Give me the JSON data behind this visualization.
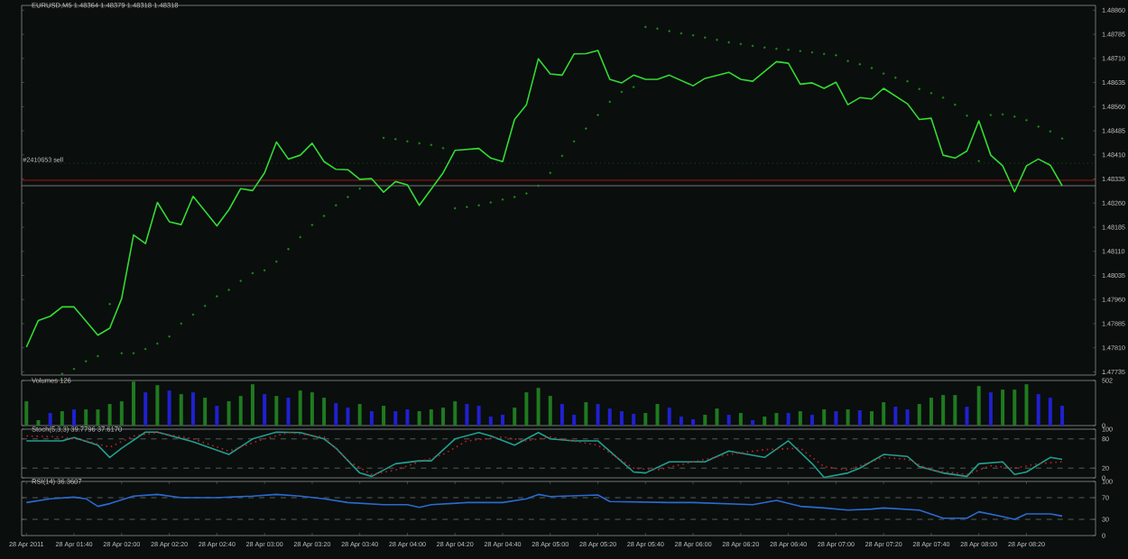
{
  "chart_data": [
    {
      "type": "line",
      "title": "EURUSD,M5  1.48364 1.48379 1.48318 1.48318",
      "xlim": [
        "2011-04-28T01:18",
        "2011-04-28T08:49"
      ],
      "ylim": [
        1.47725,
        1.48875
      ],
      "tick_labels": "y",
      "yticks": [
        1.47735,
        {
          "value": 1.4781,
          "label": "1.47810"
        },
        1.47885,
        {
          "value": 1.4796,
          "label": "1.47960"
        },
        1.48035,
        {
          "value": 1.4811,
          "label": "1.48110"
        },
        1.48185,
        {
          "value": 1.4826,
          "label": "1.48260"
        },
        1.48335,
        {
          "value": 1.4841,
          "label": "1.48410"
        },
        1.48485,
        {
          "value": 1.4856,
          "label": "1.48560"
        },
        1.48635,
        {
          "value": 1.4871,
          "label": "1.48710"
        },
        1.48785,
        {
          "value": 1.4886,
          "label": "1.48860"
        }
      ],
      "ref_lines": [
        {
          "axis": "y",
          "value": 1.48384,
          "label": "#2410653 sell",
          "color": "#1e7a1e",
          "line_style": "dotted"
        },
        {
          "axis": "y",
          "value": 1.48331,
          "color": "#c01818"
        },
        {
          "axis": "y",
          "value": 1.48314,
          "color": "#8a9090"
        }
      ],
      "series": [
        {
          "color": "#32dc32",
          "x": [
            "2011-04-28T01:20",
            "2011-04-28T01:25",
            "2011-04-28T01:30",
            "2011-04-28T01:35",
            "2011-04-28T01:40",
            "2011-04-28T01:50",
            "2011-04-28T01:55",
            "2011-04-28T02:00",
            "2011-04-28T02:05",
            "2011-04-28T02:10",
            "2011-04-28T02:15",
            "2011-04-28T02:20",
            "2011-04-28T02:25",
            "2011-04-28T02:30",
            "2011-04-28T02:40",
            "2011-04-28T02:45",
            "2011-04-28T02:50",
            "2011-04-28T02:55",
            "2011-04-28T03:00",
            "2011-04-28T03:05",
            "2011-04-28T03:10",
            "2011-04-28T03:15",
            "2011-04-28T03:20",
            "2011-04-28T03:25",
            "2011-04-28T03:30",
            "2011-04-28T03:35",
            "2011-04-28T03:40",
            "2011-04-28T03:45",
            "2011-04-28T03:50",
            "2011-04-28T03:55",
            "2011-04-28T04:00",
            "2011-04-28T04:05",
            "2011-04-28T04:15",
            "2011-04-28T04:20",
            "2011-04-28T04:30",
            "2011-04-28T04:35",
            "2011-04-28T04:40",
            "2011-04-28T04:45",
            "2011-04-28T04:50",
            "2011-04-28T04:55",
            "2011-04-28T05:00",
            "2011-04-28T05:05",
            "2011-04-28T05:10",
            "2011-04-28T05:15",
            "2011-04-28T05:20",
            "2011-04-28T05:25",
            "2011-04-28T05:30",
            "2011-04-28T05:35",
            "2011-04-28T05:40",
            "2011-04-28T05:45",
            "2011-04-28T05:50",
            "2011-04-28T06:00",
            "2011-04-28T06:05",
            "2011-04-28T06:15",
            "2011-04-28T06:20",
            "2011-04-28T06:25",
            "2011-04-28T06:35",
            "2011-04-28T06:40",
            "2011-04-28T06:45",
            "2011-04-28T06:50",
            "2011-04-28T06:55",
            "2011-04-28T07:00",
            "2011-04-28T07:05",
            "2011-04-28T07:10",
            "2011-04-28T07:15",
            "2011-04-28T07:20",
            "2011-04-28T07:30",
            "2011-04-28T07:35",
            "2011-04-28T07:40",
            "2011-04-28T07:45",
            "2011-04-28T07:50",
            "2011-04-28T07:55",
            "2011-04-28T08:00",
            "2011-04-28T08:05",
            "2011-04-28T08:10",
            "2011-04-28T08:15",
            "2011-04-28T08:20",
            "2011-04-28T08:25",
            "2011-04-28T08:30",
            "2011-04-28T08:35"
          ],
          "values": [
            1.47812,
            1.47895,
            1.47908,
            1.47937,
            1.47937,
            1.47849,
            1.47871,
            1.47963,
            1.48161,
            1.48134,
            1.48262,
            1.48202,
            1.48193,
            1.48281,
            1.48189,
            1.48239,
            1.48305,
            1.48299,
            1.48354,
            1.4845,
            1.48397,
            1.48409,
            1.48446,
            1.48389,
            1.48365,
            1.48364,
            1.48334,
            1.48336,
            1.48294,
            1.48327,
            1.48317,
            1.48253,
            1.48354,
            1.48424,
            1.4843,
            1.484,
            1.48389,
            1.4852,
            1.48566,
            1.48709,
            1.48662,
            1.48658,
            1.48724,
            1.48725,
            1.48735,
            1.48645,
            1.48634,
            1.48658,
            1.48645,
            1.48645,
            1.48658,
            1.48625,
            1.48648,
            1.48667,
            1.48645,
            1.48639,
            1.487,
            1.48695,
            1.4863,
            1.48634,
            1.48617,
            1.48636,
            1.48566,
            1.48588,
            1.48584,
            1.48617,
            1.48569,
            1.4852,
            1.48524,
            1.48409,
            1.484,
            1.48422,
            1.48516,
            1.48409,
            1.48376,
            1.48295,
            1.48376,
            1.48397,
            1.48378,
            1.48314
          ]
        },
        {
          "type": "scatter",
          "color": "#1c8c1c",
          "x": [
            "2011-04-28T01:35",
            "2011-04-28T01:40",
            "2011-04-28T01:45",
            "2011-04-28T01:50",
            "2011-04-28T01:55",
            "2011-04-28T02:00",
            "2011-04-28T02:05",
            "2011-04-28T02:10",
            "2011-04-28T02:15",
            "2011-04-28T02:20",
            "2011-04-28T02:25",
            "2011-04-28T02:30",
            "2011-04-28T02:35",
            "2011-04-28T02:40",
            "2011-04-28T02:45",
            "2011-04-28T02:50",
            "2011-04-28T02:55",
            "2011-04-28T03:00",
            "2011-04-28T03:05",
            "2011-04-28T03:10",
            "2011-04-28T03:15",
            "2011-04-28T03:20",
            "2011-04-28T03:25",
            "2011-04-28T03:30",
            "2011-04-28T03:35",
            "2011-04-28T03:40",
            "2011-04-28T03:50",
            "2011-04-28T03:55",
            "2011-04-28T04:00",
            "2011-04-28T04:05",
            "2011-04-28T04:10",
            "2011-04-28T04:15",
            "2011-04-28T04:20",
            "2011-04-28T04:25",
            "2011-04-28T04:30",
            "2011-04-28T04:35",
            "2011-04-28T04:40",
            "2011-04-28T04:45",
            "2011-04-28T04:50",
            "2011-04-28T04:55",
            "2011-04-28T05:00",
            "2011-04-28T05:05",
            "2011-04-28T05:10",
            "2011-04-28T05:15",
            "2011-04-28T05:20",
            "2011-04-28T05:25",
            "2011-04-28T05:30",
            "2011-04-28T05:35",
            "2011-04-28T05:40",
            "2011-04-28T05:45",
            "2011-04-28T05:50",
            "2011-04-28T05:55",
            "2011-04-28T06:00",
            "2011-04-28T06:05",
            "2011-04-28T06:10",
            "2011-04-28T06:15",
            "2011-04-28T06:20",
            "2011-04-28T06:25",
            "2011-04-28T06:30",
            "2011-04-28T06:35",
            "2011-04-28T06:40",
            "2011-04-28T06:45",
            "2011-04-28T06:50",
            "2011-04-28T06:55",
            "2011-04-28T07:00",
            "2011-04-28T07:05",
            "2011-04-28T07:10",
            "2011-04-28T07:15",
            "2011-04-28T07:20",
            "2011-04-28T07:25",
            "2011-04-28T07:30",
            "2011-04-28T07:35",
            "2011-04-28T07:40",
            "2011-04-28T07:45",
            "2011-04-28T07:50",
            "2011-04-28T07:55",
            "2011-04-28T08:00",
            "2011-04-28T08:05",
            "2011-04-28T08:10",
            "2011-04-28T08:15",
            "2011-04-28T08:20",
            "2011-04-28T08:25",
            "2011-04-28T08:30",
            "2011-04-28T08:35"
          ],
          "values": [
            1.47729,
            1.47744,
            1.47768,
            1.47784,
            1.47946,
            1.47793,
            1.47793,
            1.47806,
            1.47823,
            1.47845,
            1.47885,
            1.47913,
            1.4794,
            1.4797,
            1.4799,
            1.48018,
            1.48042,
            1.48051,
            1.48078,
            1.48117,
            1.48154,
            1.48192,
            1.4822,
            1.48253,
            1.48279,
            1.48305,
            1.48463,
            1.48459,
            1.48452,
            1.48446,
            1.48441,
            1.48431,
            1.48244,
            1.48248,
            1.48253,
            1.48262,
            1.48271,
            1.48279,
            1.4829,
            1.48314,
            1.48354,
            1.48407,
            1.48452,
            1.48492,
            1.48534,
            1.48575,
            1.48606,
            1.48621,
            1.48808,
            1.48803,
            1.48795,
            1.48788,
            1.48782,
            1.48775,
            1.48768,
            1.4876,
            1.48755,
            1.48749,
            1.48744,
            1.4874,
            1.48737,
            1.48733,
            1.48729,
            1.48724,
            1.4872,
            1.48702,
            1.48692,
            1.4868,
            1.48663,
            1.4865,
            1.48639,
            1.48615,
            1.48602,
            1.48588,
            1.48566,
            1.48532,
            1.48391,
            1.48534,
            1.48536,
            1.48529,
            1.48518,
            1.48498,
            1.48483,
            1.48461
          ]
        }
      ]
    },
    {
      "type": "bar",
      "title": "Volumes 126",
      "xlim": [
        "2011-04-28T01:18",
        "2011-04-28T08:49"
      ],
      "ylim": [
        0,
        502
      ],
      "yticks": [
        0,
        502
      ],
      "tick_labels": "y",
      "x": [
        "2011-04-28T01:20",
        "2011-04-28T01:25",
        "2011-04-28T01:30",
        "2011-04-28T01:35",
        "2011-04-28T01:40",
        "2011-04-28T01:45",
        "2011-04-28T01:50",
        "2011-04-28T01:55",
        "2011-04-28T02:00",
        "2011-04-28T02:05",
        "2011-04-28T02:10",
        "2011-04-28T02:15",
        "2011-04-28T02:20",
        "2011-04-28T02:25",
        "2011-04-28T02:30",
        "2011-04-28T02:35",
        "2011-04-28T02:40",
        "2011-04-28T02:45",
        "2011-04-28T02:50",
        "2011-04-28T02:55",
        "2011-04-28T03:00",
        "2011-04-28T03:05",
        "2011-04-28T03:10",
        "2011-04-28T03:15",
        "2011-04-28T03:20",
        "2011-04-28T03:25",
        "2011-04-28T03:30",
        "2011-04-28T03:35",
        "2011-04-28T03:40",
        "2011-04-28T03:45",
        "2011-04-28T03:50",
        "2011-04-28T03:55",
        "2011-04-28T04:00",
        "2011-04-28T04:05",
        "2011-04-28T04:10",
        "2011-04-28T04:15",
        "2011-04-28T04:20",
        "2011-04-28T04:25",
        "2011-04-28T04:30",
        "2011-04-28T04:35",
        "2011-04-28T04:40",
        "2011-04-28T04:45",
        "2011-04-28T04:50",
        "2011-04-28T04:55",
        "2011-04-28T05:00",
        "2011-04-28T05:05",
        "2011-04-28T05:10",
        "2011-04-28T05:15",
        "2011-04-28T05:20",
        "2011-04-28T05:25",
        "2011-04-28T05:30",
        "2011-04-28T05:35",
        "2011-04-28T05:40",
        "2011-04-28T05:45",
        "2011-04-28T05:50",
        "2011-04-28T05:55",
        "2011-04-28T06:00",
        "2011-04-28T06:05",
        "2011-04-28T06:10",
        "2011-04-28T06:15",
        "2011-04-28T06:20",
        "2011-04-28T06:25",
        "2011-04-28T06:30",
        "2011-04-28T06:35",
        "2011-04-28T06:40",
        "2011-04-28T06:45",
        "2011-04-28T06:50",
        "2011-04-28T06:55",
        "2011-04-28T07:00",
        "2011-04-28T07:05",
        "2011-04-28T07:10",
        "2011-04-28T07:15",
        "2011-04-28T07:20",
        "2011-04-28T07:25",
        "2011-04-28T07:30",
        "2011-04-28T07:35",
        "2011-04-28T07:40",
        "2011-04-28T07:45",
        "2011-04-28T07:50",
        "2011-04-28T07:55",
        "2011-04-28T08:00",
        "2011-04-28T08:05",
        "2011-04-28T08:10",
        "2011-04-28T08:15",
        "2011-04-28T08:20",
        "2011-04-28T08:25",
        "2011-04-28T08:30",
        "2011-04-28T08:35"
      ],
      "values": [
        270,
        60,
        140,
        160,
        180,
        180,
        180,
        240,
        270,
        490,
        370,
        450,
        390,
        350,
        370,
        310,
        220,
        270,
        330,
        460,
        350,
        330,
        310,
        390,
        370,
        310,
        250,
        200,
        240,
        160,
        220,
        160,
        180,
        160,
        180,
        200,
        270,
        240,
        220,
        100,
        120,
        200,
        370,
        420,
        330,
        240,
        120,
        260,
        240,
        190,
        160,
        130,
        140,
        240,
        200,
        100,
        70,
        120,
        190,
        120,
        140,
        60,
        100,
        140,
        140,
        160,
        120,
        180,
        160,
        180,
        170,
        160,
        260,
        210,
        180,
        240,
        310,
        340,
        340,
        210,
        440,
        370,
        400,
        400,
        460,
        350,
        310,
        220
      ],
      "colors": [
        "#1f7a1f",
        "#1f7a1f",
        "#2020d0",
        "#1f7a1f",
        "#2020d0",
        "#1f7a1f",
        "#1f7a1f",
        "#1f7a1f",
        "#1f7a1f",
        "#1f7a1f",
        "#2020d0",
        "#1f7a1f",
        "#2020d0",
        "#1f7a1f",
        "#2020d0",
        "#1f7a1f",
        "#2020d0",
        "#1f7a1f",
        "#1f7a1f",
        "#1f7a1f",
        "#2020d0",
        "#1f7a1f",
        "#2020d0",
        "#1f7a1f",
        "#1f7a1f",
        "#1f7a1f",
        "#2020d0",
        "#2020d0",
        "#1f7a1f",
        "#2020d0",
        "#1f7a1f",
        "#2020d0",
        "#2020d0",
        "#1f7a1f",
        "#1f7a1f",
        "#1f7a1f",
        "#1f7a1f",
        "#2020d0",
        "#2020d0",
        "#2020d0",
        "#2020d0",
        "#1f7a1f",
        "#1f7a1f",
        "#1f7a1f",
        "#1f7a1f",
        "#2020d0",
        "#2020d0",
        "#1f7a1f",
        "#2020d0",
        "#2020d0",
        "#2020d0",
        "#2020d0",
        "#1f7a1f",
        "#1f7a1f",
        "#2020d0",
        "#2020d0",
        "#2020d0",
        "#1f7a1f",
        "#1f7a1f",
        "#2020d0",
        "#1f7a1f",
        "#2020d0",
        "#1f7a1f",
        "#1f7a1f",
        "#2020d0",
        "#1f7a1f",
        "#2020d0",
        "#1f7a1f",
        "#2020d0",
        "#1f7a1f",
        "#2020d0",
        "#1f7a1f",
        "#1f7a1f",
        "#2020d0",
        "#2020d0",
        "#1f7a1f",
        "#1f7a1f",
        "#1f7a1f",
        "#1f7a1f",
        "#2020d0",
        "#1f7a1f",
        "#2020d0",
        "#1f7a1f",
        "#1f7a1f",
        "#1f7a1f",
        "#2020d0",
        "#2020d0",
        "#2020d0"
      ]
    },
    {
      "type": "line",
      "title": "Stoch(5,3,3) 39.7796 37.6170",
      "xlim": [
        "2011-04-28T01:18",
        "2011-04-28T08:49"
      ],
      "ylim": [
        0,
        100
      ],
      "yticks": [
        0,
        20,
        80,
        100
      ],
      "tick_labels": "y",
      "ref_lines": [
        {
          "axis": "y",
          "value": 80,
          "color": "#6a7070",
          "line_style": "dashed"
        },
        {
          "axis": "y",
          "value": 20,
          "color": "#6a7070",
          "line_style": "dashed"
        }
      ],
      "series": [
        {
          "color": "#20a090",
          "x": [
            "2011-04-28T01:20",
            "2011-04-28T01:35",
            "2011-04-28T01:40",
            "2011-04-28T01:50",
            "2011-04-28T01:55",
            "2011-04-28T02:00",
            "2011-04-28T02:10",
            "2011-04-28T02:15",
            "2011-04-28T02:30",
            "2011-04-28T02:45",
            "2011-04-28T02:55",
            "2011-04-28T03:05",
            "2011-04-28T03:15",
            "2011-04-28T03:25",
            "2011-04-28T03:30",
            "2011-04-28T03:40",
            "2011-04-28T03:45",
            "2011-04-28T03:55",
            "2011-04-28T04:05",
            "2011-04-28T04:10",
            "2011-04-28T04:20",
            "2011-04-28T04:30",
            "2011-04-28T04:35",
            "2011-04-28T04:45",
            "2011-04-28T04:55",
            "2011-04-28T05:00",
            "2011-04-28T05:10",
            "2011-04-28T05:20",
            "2011-04-28T05:35",
            "2011-04-28T05:40",
            "2011-04-28T05:50",
            "2011-04-28T06:05",
            "2011-04-28T06:15",
            "2011-04-28T06:30",
            "2011-04-28T06:40",
            "2011-04-28T06:50",
            "2011-04-28T06:55",
            "2011-04-28T07:05",
            "2011-04-28T07:10",
            "2011-04-28T07:20",
            "2011-04-28T07:30",
            "2011-04-28T07:35",
            "2011-04-28T07:45",
            "2011-04-28T07:55",
            "2011-04-28T08:00",
            "2011-04-28T08:10",
            "2011-04-28T08:15",
            "2011-04-28T08:20",
            "2011-04-28T08:30",
            "2011-04-28T08:35"
          ],
          "values": [
            76,
            76,
            83,
            67,
            42,
            61,
            94,
            94,
            74,
            48,
            80,
            94,
            93,
            80,
            61,
            10,
            3,
            29,
            35,
            35,
            80,
            93,
            86,
            67,
            93,
            80,
            76,
            76,
            12,
            10,
            33,
            33,
            55,
            42,
            76,
            29,
            1,
            10,
            20,
            48,
            44,
            23,
            10,
            3,
            29,
            33,
            7,
            12,
            42,
            38
          ]
        },
        {
          "color": "#c02020",
          "line_style": "dotted",
          "x": [
            "2011-04-28T01:20",
            "2011-04-28T01:35",
            "2011-04-28T01:45",
            "2011-04-28T01:55",
            "2011-04-28T02:05",
            "2011-04-28T02:15",
            "2011-04-28T02:30",
            "2011-04-28T02:45",
            "2011-04-28T03:00",
            "2011-04-28T03:10",
            "2011-04-28T03:25",
            "2011-04-28T03:35",
            "2011-04-28T03:45",
            "2011-04-28T03:55",
            "2011-04-28T04:05",
            "2011-04-28T04:15",
            "2011-04-28T04:25",
            "2011-04-28T04:40",
            "2011-04-28T04:50",
            "2011-04-28T05:00",
            "2011-04-28T05:20",
            "2011-04-28T05:35",
            "2011-04-28T05:45",
            "2011-04-28T06:00",
            "2011-04-28T06:15",
            "2011-04-28T06:30",
            "2011-04-28T06:45",
            "2011-04-28T06:55",
            "2011-04-28T07:05",
            "2011-04-28T07:20",
            "2011-04-28T07:30",
            "2011-04-28T07:40",
            "2011-04-28T07:55",
            "2011-04-28T08:05",
            "2011-04-28T08:15",
            "2011-04-28T08:25",
            "2011-04-28T08:35"
          ],
          "values": [
            86,
            84,
            76,
            63,
            86,
            93,
            80,
            55,
            80,
            93,
            84,
            35,
            7,
            16,
            33,
            48,
            76,
            84,
            76,
            84,
            67,
            20,
            16,
            33,
            48,
            58,
            61,
            23,
            16,
            42,
            38,
            16,
            7,
            25,
            20,
            29,
            33
          ]
        }
      ]
    },
    {
      "type": "line",
      "title": "RSI(14) 36.3607",
      "xlim": [
        "2011-04-28T01:18",
        "2011-04-28T08:49"
      ],
      "ylim": [
        0,
        100
      ],
      "yticks": [
        0,
        30,
        70,
        100
      ],
      "xticks": [
        {
          "value": "2011-04-28T01:20",
          "label": "28 Apr 2011"
        },
        {
          "value": "2011-04-28T01:40",
          "label": "28 Apr 01:40"
        },
        {
          "value": "2011-04-28T02:00",
          "label": "28 Apr 02:00"
        },
        {
          "value": "2011-04-28T02:20",
          "label": "28 Apr 02:20"
        },
        {
          "value": "2011-04-28T02:40",
          "label": "28 Apr 02:40"
        },
        {
          "value": "2011-04-28T03:00",
          "label": "28 Apr 03:00"
        },
        {
          "value": "2011-04-28T03:20",
          "label": "28 Apr 03:20"
        },
        {
          "value": "2011-04-28T03:40",
          "label": "28 Apr 03:40"
        },
        {
          "value": "2011-04-28T04:00",
          "label": "28 Apr 04:00"
        },
        {
          "value": "2011-04-28T04:20",
          "label": "28 Apr 04:20"
        },
        {
          "value": "2011-04-28T04:40",
          "label": "28 Apr 04:40"
        },
        {
          "value": "2011-04-28T05:00",
          "label": "28 Apr 05:00"
        },
        {
          "value": "2011-04-28T05:20",
          "label": "28 Apr 05:20"
        },
        {
          "value": "2011-04-28T05:40",
          "label": "28 Apr 05:40"
        },
        {
          "value": "2011-04-28T06:00",
          "label": "28 Apr 06:00"
        },
        {
          "value": "2011-04-28T06:20",
          "label": "28 Apr 06:20"
        },
        {
          "value": "2011-04-28T06:40",
          "label": "28 Apr 06:40"
        },
        {
          "value": "2011-04-28T07:00",
          "label": "28 Apr 07:00"
        },
        {
          "value": "2011-04-28T07:20",
          "label": "28 Apr 07:20"
        },
        {
          "value": "2011-04-28T07:40",
          "label": "28 Apr 07:40"
        },
        {
          "value": "2011-04-28T08:00",
          "label": "28 Apr 08:00"
        },
        {
          "value": "2011-04-28T08:20",
          "label": "28 Apr 08:20"
        }
      ],
      "ref_lines": [
        {
          "axis": "y",
          "value": 70,
          "color": "#6a7070",
          "line_style": "dashed"
        },
        {
          "axis": "y",
          "value": 30,
          "color": "#6a7070",
          "line_style": "dashed"
        }
      ],
      "series": [
        {
          "color": "#2a6ad0",
          "x": [
            "2011-04-28T01:20",
            "2011-04-28T01:30",
            "2011-04-28T01:40",
            "2011-04-28T01:45",
            "2011-04-28T01:50",
            "2011-04-28T01:55",
            "2011-04-28T02:05",
            "2011-04-28T02:15",
            "2011-04-28T02:25",
            "2011-04-28T02:40",
            "2011-04-28T02:55",
            "2011-04-28T03:05",
            "2011-04-28T03:15",
            "2011-04-28T03:25",
            "2011-04-28T03:35",
            "2011-04-28T03:50",
            "2011-04-28T04:00",
            "2011-04-28T04:05",
            "2011-04-28T04:10",
            "2011-04-28T04:25",
            "2011-04-28T04:40",
            "2011-04-28T04:50",
            "2011-04-28T04:55",
            "2011-04-28T05:00",
            "2011-04-28T05:20",
            "2011-04-28T05:25",
            "2011-04-28T05:50",
            "2011-04-28T06:00",
            "2011-04-28T06:25",
            "2011-04-28T06:35",
            "2011-04-28T06:45",
            "2011-04-28T06:55",
            "2011-04-28T07:05",
            "2011-04-28T07:15",
            "2011-04-28T07:20",
            "2011-04-28T07:35",
            "2011-04-28T07:45",
            "2011-04-28T07:55",
            "2011-04-28T08:00",
            "2011-04-28T08:10",
            "2011-04-28T08:15",
            "2011-04-28T08:20",
            "2011-04-28T08:30",
            "2011-04-28T08:35"
          ],
          "values": [
            61,
            68,
            71,
            68,
            54,
            59,
            73,
            76,
            70,
            70,
            73,
            76,
            73,
            68,
            61,
            57,
            57,
            52,
            57,
            61,
            61,
            68,
            76,
            72,
            75,
            63,
            61,
            61,
            57,
            65,
            54,
            51,
            47,
            49,
            51,
            47,
            32,
            32,
            44,
            35,
            30,
            40,
            40,
            36
          ]
        }
      ]
    }
  ]
}
